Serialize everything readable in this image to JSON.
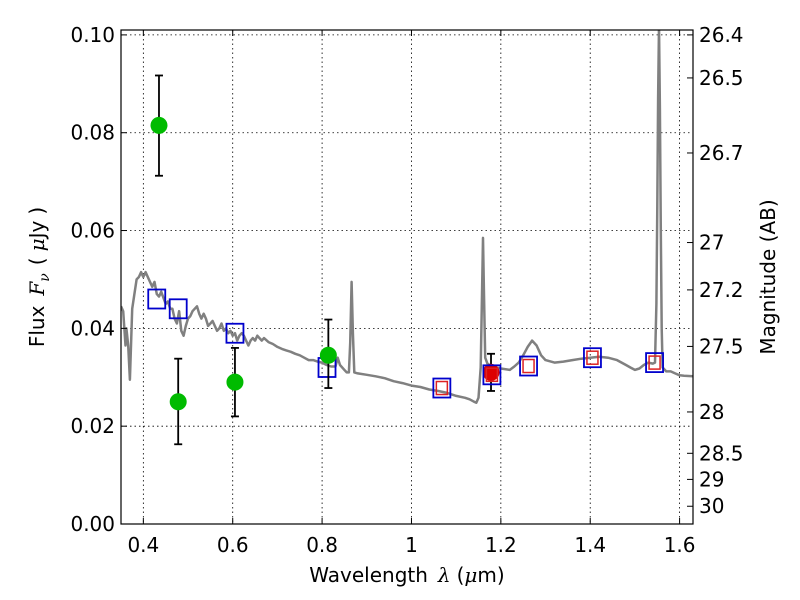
{
  "chart_data": {
    "type": "scatter",
    "title": "",
    "xlabel": {
      "text": "Wavelength",
      "symbol": "λ",
      "unit_open": "(",
      "unit_mu": "μ",
      "unit_rest": "m)"
    },
    "ylabel": {
      "text": "Flux",
      "symbol": "F",
      "sub": "ν",
      "unit_open": "(",
      "unit_mu": "μ",
      "unit_rest": "Jy",
      "unit_close": ")"
    },
    "y2label": "Magnitude (AB)",
    "xlim": [
      0.35,
      1.63
    ],
    "ylim": [
      0.0,
      0.101
    ],
    "grid": true,
    "xticks": [
      {
        "v": 0.4,
        "label": "0.4"
      },
      {
        "v": 0.6,
        "label": "0.6"
      },
      {
        "v": 0.8,
        "label": "0.8"
      },
      {
        "v": 1.0,
        "label": "1"
      },
      {
        "v": 1.2,
        "label": "1.2"
      },
      {
        "v": 1.4,
        "label": "1.4"
      },
      {
        "v": 1.6,
        "label": "1.6"
      }
    ],
    "yticks": [
      {
        "v": 0.0,
        "label": "0.00"
      },
      {
        "v": 0.02,
        "label": "0.02"
      },
      {
        "v": 0.04,
        "label": "0.04"
      },
      {
        "v": 0.06,
        "label": "0.06"
      },
      {
        "v": 0.08,
        "label": "0.08"
      },
      {
        "v": 0.1,
        "label": "0.10"
      }
    ],
    "y2ticks": [
      {
        "mag": 26.4,
        "label": "26.4"
      },
      {
        "mag": 26.5,
        "label": "26.5"
      },
      {
        "mag": 26.7,
        "label": "26.7"
      },
      {
        "mag": 27.0,
        "label": "27"
      },
      {
        "mag": 27.2,
        "label": "27.2"
      },
      {
        "mag": 27.5,
        "label": "27.5"
      },
      {
        "mag": 28.0,
        "label": "28"
      },
      {
        "mag": 28.5,
        "label": "28.5"
      },
      {
        "mag": 29.0,
        "label": "29"
      },
      {
        "mag": 30.0,
        "label": "30"
      }
    ],
    "series": [
      {
        "kind": "line",
        "color": "#808080",
        "points": [
          [
            0.35,
            0.0445
          ],
          [
            0.355,
            0.0435
          ],
          [
            0.36,
            0.0365
          ],
          [
            0.362,
            0.04
          ],
          [
            0.366,
            0.0365
          ],
          [
            0.37,
            0.0295
          ],
          [
            0.375,
            0.044
          ],
          [
            0.38,
            0.047
          ],
          [
            0.385,
            0.05
          ],
          [
            0.39,
            0.0505
          ],
          [
            0.395,
            0.0515
          ],
          [
            0.4,
            0.0505
          ],
          [
            0.405,
            0.0515
          ],
          [
            0.41,
            0.0505
          ],
          [
            0.415,
            0.0495
          ],
          [
            0.42,
            0.0485
          ],
          [
            0.425,
            0.0495
          ],
          [
            0.43,
            0.047
          ],
          [
            0.435,
            0.0465
          ],
          [
            0.44,
            0.0475
          ],
          [
            0.445,
            0.0462
          ],
          [
            0.45,
            0.045
          ],
          [
            0.455,
            0.0455
          ],
          [
            0.46,
            0.044
          ],
          [
            0.465,
            0.044
          ],
          [
            0.47,
            0.042
          ],
          [
            0.475,
            0.041
          ],
          [
            0.48,
            0.0435
          ],
          [
            0.485,
            0.0395
          ],
          [
            0.49,
            0.0385
          ],
          [
            0.495,
            0.0405
          ],
          [
            0.5,
            0.042
          ],
          [
            0.505,
            0.0425
          ],
          [
            0.51,
            0.0435
          ],
          [
            0.515,
            0.044
          ],
          [
            0.52,
            0.0445
          ],
          [
            0.525,
            0.043
          ],
          [
            0.53,
            0.042
          ],
          [
            0.535,
            0.043
          ],
          [
            0.54,
            0.042
          ],
          [
            0.545,
            0.0405
          ],
          [
            0.55,
            0.041
          ],
          [
            0.555,
            0.0415
          ],
          [
            0.56,
            0.0405
          ],
          [
            0.565,
            0.0395
          ],
          [
            0.57,
            0.04
          ],
          [
            0.575,
            0.041
          ],
          [
            0.58,
            0.0395
          ],
          [
            0.585,
            0.04
          ],
          [
            0.59,
            0.039
          ],
          [
            0.595,
            0.0395
          ],
          [
            0.6,
            0.0385
          ],
          [
            0.605,
            0.039
          ],
          [
            0.61,
            0.0375
          ],
          [
            0.615,
            0.0385
          ],
          [
            0.62,
            0.039
          ],
          [
            0.625,
            0.0385
          ],
          [
            0.63,
            0.0375
          ],
          [
            0.635,
            0.0365
          ],
          [
            0.64,
            0.0375
          ],
          [
            0.645,
            0.038
          ],
          [
            0.65,
            0.0375
          ],
          [
            0.655,
            0.0385
          ],
          [
            0.66,
            0.038
          ],
          [
            0.665,
            0.0375
          ],
          [
            0.67,
            0.038
          ],
          [
            0.68,
            0.0372
          ],
          [
            0.69,
            0.0368
          ],
          [
            0.7,
            0.0362
          ],
          [
            0.71,
            0.0358
          ],
          [
            0.72,
            0.0355
          ],
          [
            0.73,
            0.0352
          ],
          [
            0.74,
            0.0348
          ],
          [
            0.75,
            0.0345
          ],
          [
            0.76,
            0.034
          ],
          [
            0.77,
            0.0335
          ],
          [
            0.78,
            0.0335
          ],
          [
            0.79,
            0.0332
          ],
          [
            0.8,
            0.033
          ],
          [
            0.81,
            0.0325
          ],
          [
            0.82,
            0.0322
          ],
          [
            0.83,
            0.0322
          ],
          [
            0.835,
            0.034
          ],
          [
            0.84,
            0.0325
          ],
          [
            0.85,
            0.0315
          ],
          [
            0.855,
            0.031
          ],
          [
            0.86,
            0.031
          ],
          [
            0.863,
            0.037
          ],
          [
            0.866,
            0.0495
          ],
          [
            0.869,
            0.039
          ],
          [
            0.872,
            0.031
          ],
          [
            0.88,
            0.0308
          ],
          [
            0.9,
            0.0305
          ],
          [
            0.92,
            0.0302
          ],
          [
            0.94,
            0.0298
          ],
          [
            0.96,
            0.0292
          ],
          [
            0.98,
            0.0288
          ],
          [
            1.0,
            0.0283
          ],
          [
            1.02,
            0.028
          ],
          [
            1.04,
            0.0275
          ],
          [
            1.06,
            0.0272
          ],
          [
            1.08,
            0.0268
          ],
          [
            1.1,
            0.0262
          ],
          [
            1.12,
            0.0258
          ],
          [
            1.13,
            0.0255
          ],
          [
            1.14,
            0.025
          ],
          [
            1.145,
            0.0248
          ],
          [
            1.15,
            0.0258
          ],
          [
            1.155,
            0.032
          ],
          [
            1.158,
            0.048
          ],
          [
            1.16,
            0.0585
          ],
          [
            1.162,
            0.048
          ],
          [
            1.165,
            0.034
          ],
          [
            1.17,
            0.0328
          ],
          [
            1.18,
            0.0322
          ],
          [
            1.2,
            0.0318
          ],
          [
            1.22,
            0.0315
          ],
          [
            1.23,
            0.0322
          ],
          [
            1.24,
            0.033
          ],
          [
            1.25,
            0.0345
          ],
          [
            1.26,
            0.0362
          ],
          [
            1.27,
            0.0375
          ],
          [
            1.28,
            0.0365
          ],
          [
            1.29,
            0.0345
          ],
          [
            1.3,
            0.0335
          ],
          [
            1.32,
            0.033
          ],
          [
            1.34,
            0.0332
          ],
          [
            1.36,
            0.0335
          ],
          [
            1.38,
            0.0338
          ],
          [
            1.4,
            0.034
          ],
          [
            1.42,
            0.0342
          ],
          [
            1.44,
            0.034
          ],
          [
            1.46,
            0.0335
          ],
          [
            1.48,
            0.0325
          ],
          [
            1.49,
            0.032
          ],
          [
            1.5,
            0.0315
          ],
          [
            1.51,
            0.0318
          ],
          [
            1.52,
            0.0325
          ],
          [
            1.53,
            0.033
          ],
          [
            1.54,
            0.0328
          ],
          [
            1.545,
            0.033
          ],
          [
            1.548,
            0.045
          ],
          [
            1.55,
            0.065
          ],
          [
            1.552,
            0.087
          ],
          [
            1.554,
            0.102
          ],
          [
            1.556,
            0.085
          ],
          [
            1.558,
            0.06
          ],
          [
            1.56,
            0.04
          ],
          [
            1.562,
            0.032
          ],
          [
            1.57,
            0.0312
          ],
          [
            1.58,
            0.0312
          ],
          [
            1.59,
            0.0308
          ],
          [
            1.6,
            0.0304
          ],
          [
            1.61,
            0.0303
          ],
          [
            1.63,
            0.0302
          ]
        ]
      },
      {
        "kind": "open-square",
        "edge": "#0000cc",
        "points": [
          [
            0.43,
            0.046
          ],
          [
            0.478,
            0.044
          ],
          [
            0.605,
            0.039
          ],
          [
            0.811,
            0.032
          ]
        ]
      },
      {
        "kind": "points-with-error",
        "color": "#00bb00",
        "err_color": "#000000",
        "points": [
          {
            "x": 0.435,
            "y": 0.0815,
            "lo": 0.0712,
            "hi": 0.0917
          },
          {
            "x": 0.478,
            "y": 0.025,
            "lo": 0.0163,
            "hi": 0.0338
          },
          {
            "x": 0.605,
            "y": 0.029,
            "lo": 0.022,
            "hi": 0.036
          },
          {
            "x": 0.814,
            "y": 0.0345,
            "lo": 0.0278,
            "hi": 0.0418
          }
        ]
      },
      {
        "kind": "points-with-error",
        "color": "#dd0000",
        "err_color": "#000000",
        "points": [
          {
            "x": 1.178,
            "y": 0.031,
            "lo": 0.0272,
            "hi": 0.0348
          }
        ]
      },
      {
        "kind": "double-square",
        "edge": "#0000cc",
        "inner": "#dd2222",
        "points": [
          [
            1.068,
            0.0278
          ],
          [
            1.18,
            0.0305
          ],
          [
            1.262,
            0.0323
          ],
          [
            1.405,
            0.034
          ],
          [
            1.544,
            0.033
          ]
        ]
      }
    ]
  }
}
